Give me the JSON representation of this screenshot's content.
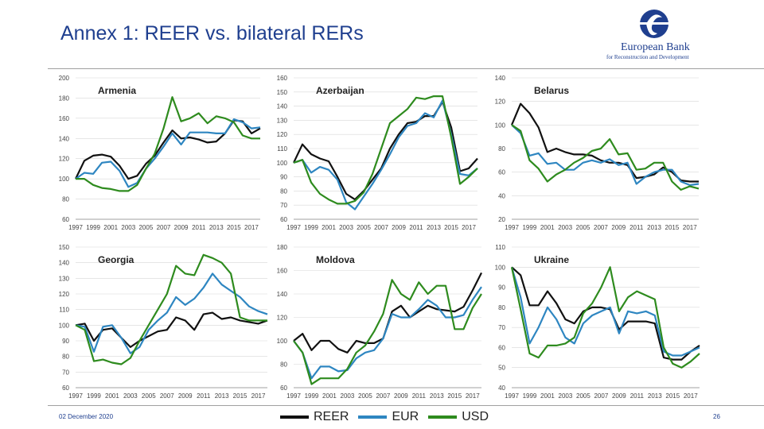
{
  "title": "Annex 1: REER vs. bilateral RERs",
  "logo": {
    "name": "European Bank",
    "subtitle": "for Reconstruction and Development"
  },
  "footer": {
    "date": "02 December 2020",
    "page": "26"
  },
  "colors": {
    "REER": "#111111",
    "EUR": "#2e86c1",
    "USD": "#2e8b1e",
    "accent": "#1f3f8f"
  },
  "legend": [
    {
      "label": "REER",
      "color": "#111111"
    },
    {
      "label": "EUR",
      "color": "#2e86c1"
    },
    {
      "label": "USD",
      "color": "#2e8b1e"
    }
  ],
  "chart_data": [
    {
      "type": "line",
      "title": "Armenia",
      "x": [
        1997,
        1998,
        1999,
        2000,
        2001,
        2002,
        2003,
        2004,
        2005,
        2006,
        2007,
        2008,
        2009,
        2010,
        2011,
        2012,
        2013,
        2014,
        2015,
        2016,
        2017,
        2018
      ],
      "x_ticks": [
        "1997",
        "1999",
        "2001",
        "2003",
        "2005",
        "2007",
        "2009",
        "2011",
        "2013",
        "2015",
        "2017"
      ],
      "y_ticks": [
        60,
        80,
        100,
        120,
        140,
        160,
        180,
        200
      ],
      "ylim": [
        60,
        200
      ],
      "series": [
        {
          "name": "REER",
          "values": [
            100,
            118,
            123,
            124,
            122,
            113,
            100,
            103,
            115,
            123,
            136,
            148,
            140,
            141,
            139,
            136,
            137,
            145,
            158,
            157,
            145,
            150
          ]
        },
        {
          "name": "EUR",
          "values": [
            100,
            106,
            105,
            116,
            117,
            108,
            92,
            96,
            110,
            120,
            132,
            145,
            134,
            146,
            146,
            146,
            145,
            145,
            159,
            156,
            150,
            151
          ]
        },
        {
          "name": "USD",
          "values": [
            100,
            100,
            94,
            91,
            90,
            88,
            88,
            94,
            110,
            125,
            150,
            181,
            157,
            160,
            165,
            155,
            162,
            160,
            156,
            143,
            140,
            140
          ]
        }
      ]
    },
    {
      "type": "line",
      "title": "Azerbaijan",
      "x": [
        1997,
        1998,
        1999,
        2000,
        2001,
        2002,
        2003,
        2004,
        2005,
        2006,
        2007,
        2008,
        2009,
        2010,
        2011,
        2012,
        2013,
        2014,
        2015,
        2016,
        2017,
        2018
      ],
      "x_ticks": [
        "1997",
        "1999",
        "2001",
        "2003",
        "2005",
        "2007",
        "2009",
        "2011",
        "2013",
        "2015",
        "2017"
      ],
      "y_ticks": [
        60,
        70,
        80,
        90,
        100,
        110,
        120,
        130,
        140,
        150,
        160
      ],
      "ylim": [
        60,
        160
      ],
      "series": [
        {
          "name": "REER",
          "values": [
            100,
            113,
            106,
            103,
            101,
            90,
            78,
            74,
            80,
            88,
            96,
            110,
            120,
            128,
            129,
            133,
            133,
            143,
            125,
            94,
            96,
            103
          ]
        },
        {
          "name": "EUR",
          "values": [
            100,
            102,
            93,
            97,
            95,
            88,
            72,
            67,
            76,
            85,
            95,
            106,
            118,
            126,
            128,
            135,
            132,
            144,
            120,
            92,
            91,
            96
          ]
        },
        {
          "name": "USD",
          "values": [
            100,
            102,
            86,
            78,
            74,
            71,
            71,
            73,
            79,
            92,
            110,
            128,
            133,
            138,
            146,
            145,
            147,
            147,
            118,
            85,
            90,
            96
          ]
        }
      ]
    },
    {
      "type": "line",
      "title": "Belarus",
      "x": [
        1997,
        1998,
        1999,
        2000,
        2001,
        2002,
        2003,
        2004,
        2005,
        2006,
        2007,
        2008,
        2009,
        2010,
        2011,
        2012,
        2013,
        2014,
        2015,
        2016,
        2017,
        2018
      ],
      "x_ticks": [
        "1997",
        "1999",
        "2001",
        "2003",
        "2005",
        "2007",
        "2009",
        "2011",
        "2013",
        "2015",
        "2017"
      ],
      "y_ticks": [
        20,
        40,
        60,
        80,
        100,
        120,
        140
      ],
      "ylim": [
        20,
        140
      ],
      "series": [
        {
          "name": "REER",
          "values": [
            100,
            118,
            110,
            98,
            77,
            80,
            77,
            75,
            75,
            74,
            70,
            68,
            68,
            66,
            55,
            56,
            58,
            64,
            60,
            53,
            52,
            52
          ]
        },
        {
          "name": "EUR",
          "values": [
            100,
            93,
            74,
            76,
            67,
            68,
            62,
            62,
            68,
            70,
            68,
            71,
            66,
            68,
            50,
            56,
            60,
            62,
            62,
            52,
            49,
            50
          ]
        },
        {
          "name": "USD",
          "values": [
            100,
            95,
            70,
            63,
            52,
            58,
            62,
            68,
            72,
            78,
            80,
            88,
            75,
            76,
            62,
            63,
            68,
            68,
            52,
            45,
            48,
            46
          ]
        }
      ]
    },
    {
      "type": "line",
      "title": "Georgia",
      "x": [
        1997,
        1998,
        1999,
        2000,
        2001,
        2002,
        2003,
        2004,
        2005,
        2006,
        2007,
        2008,
        2009,
        2010,
        2011,
        2012,
        2013,
        2014,
        2015,
        2016,
        2017,
        2018
      ],
      "x_ticks": [
        "1997",
        "1999",
        "2001",
        "2003",
        "2005",
        "2007",
        "2009",
        "2011",
        "2013",
        "2015",
        "2017"
      ],
      "y_ticks": [
        60,
        70,
        80,
        90,
        100,
        110,
        120,
        130,
        140,
        150
      ],
      "ylim": [
        60,
        150
      ],
      "series": [
        {
          "name": "REER",
          "values": [
            100,
            101,
            90,
            97,
            98,
            92,
            86,
            90,
            93,
            96,
            97,
            105,
            103,
            97,
            107,
            108,
            104,
            105,
            103,
            102,
            101,
            103
          ]
        },
        {
          "name": "EUR",
          "values": [
            100,
            99,
            83,
            99,
            100,
            92,
            82,
            86,
            97,
            103,
            108,
            118,
            113,
            117,
            124,
            133,
            126,
            122,
            118,
            112,
            109,
            107
          ]
        },
        {
          "name": "USD",
          "values": [
            100,
            97,
            77,
            78,
            76,
            75,
            79,
            90,
            100,
            110,
            120,
            138,
            133,
            132,
            145,
            143,
            140,
            133,
            105,
            103,
            103,
            103
          ]
        }
      ]
    },
    {
      "type": "line",
      "title": "Moldova",
      "x": [
        1997,
        1998,
        1999,
        2000,
        2001,
        2002,
        2003,
        2004,
        2005,
        2006,
        2007,
        2008,
        2009,
        2010,
        2011,
        2012,
        2013,
        2014,
        2015,
        2016,
        2017,
        2018
      ],
      "x_ticks": [
        "1997",
        "1999",
        "2001",
        "2003",
        "2005",
        "2007",
        "2009",
        "2011",
        "2013",
        "2015",
        "2017"
      ],
      "y_ticks": [
        60,
        80,
        100,
        120,
        140,
        160,
        180
      ],
      "ylim": [
        60,
        180
      ],
      "series": [
        {
          "name": "REER",
          "values": [
            100,
            106,
            92,
            100,
            100,
            93,
            90,
            100,
            98,
            98,
            102,
            125,
            130,
            120,
            125,
            130,
            127,
            126,
            125,
            129,
            143,
            158
          ]
        },
        {
          "name": "EUR",
          "values": [
            100,
            90,
            68,
            78,
            78,
            74,
            75,
            85,
            90,
            92,
            102,
            123,
            120,
            120,
            127,
            135,
            130,
            120,
            120,
            122,
            135,
            146
          ]
        },
        {
          "name": "USD",
          "values": [
            100,
            90,
            63,
            68,
            68,
            68,
            76,
            90,
            96,
            108,
            123,
            152,
            140,
            135,
            150,
            140,
            147,
            147,
            110,
            110,
            128,
            140
          ]
        }
      ]
    },
    {
      "type": "line",
      "title": "Ukraine",
      "x": [
        1997,
        1998,
        1999,
        2000,
        2001,
        2002,
        2003,
        2004,
        2005,
        2006,
        2007,
        2008,
        2009,
        2010,
        2011,
        2012,
        2013,
        2014,
        2015,
        2016,
        2017,
        2018
      ],
      "x_ticks": [
        "1997",
        "1999",
        "2001",
        "2003",
        "2005",
        "2007",
        "2009",
        "2011",
        "2013",
        "2015",
        "2017"
      ],
      "y_ticks": [
        40,
        50,
        60,
        70,
        80,
        90,
        100,
        110
      ],
      "ylim": [
        40,
        110
      ],
      "series": [
        {
          "name": "REER",
          "values": [
            100,
            96,
            81,
            81,
            88,
            82,
            74,
            72,
            78,
            80,
            80,
            79,
            69,
            73,
            73,
            73,
            72,
            55,
            54,
            54,
            58,
            61
          ]
        },
        {
          "name": "EUR",
          "values": [
            100,
            85,
            62,
            70,
            80,
            74,
            65,
            62,
            72,
            76,
            78,
            80,
            67,
            78,
            77,
            78,
            76,
            58,
            56,
            56,
            58,
            60
          ]
        },
        {
          "name": "USD",
          "values": [
            100,
            79,
            57,
            55,
            61,
            61,
            62,
            65,
            77,
            82,
            90,
            100,
            78,
            85,
            88,
            86,
            84,
            60,
            52,
            50,
            53,
            57
          ]
        }
      ]
    }
  ]
}
